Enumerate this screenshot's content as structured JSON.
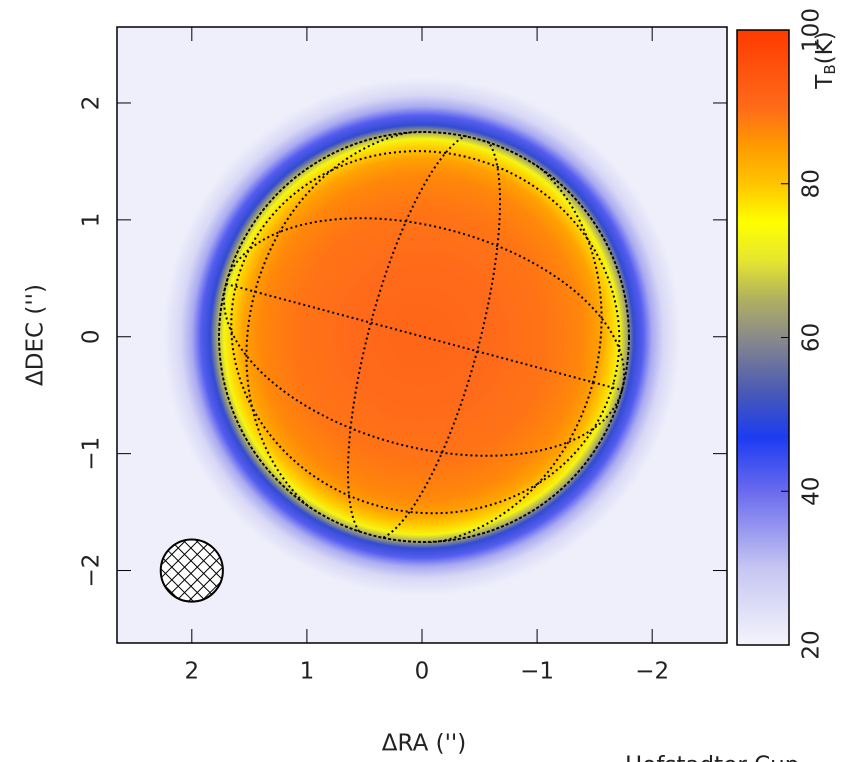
{
  "chart_data": {
    "type": "radial-map",
    "x_label": "ΔRA ('')",
    "y_label": "ΔDEC ('')",
    "colorbar_label": {
      "main": "T",
      "sub": "B",
      "unit": "(K)"
    },
    "xlim": [
      2.65,
      -2.65
    ],
    "ylim": [
      -2.62,
      2.65
    ],
    "xticks": [
      2,
      1,
      0,
      {
        "value": -1,
        "label": "−1"
      },
      {
        "value": -2,
        "label": "−2"
      }
    ],
    "yticks": [
      {
        "value": -2,
        "label": "−2"
      },
      {
        "value": -1,
        "label": "−1"
      },
      0,
      1,
      2
    ],
    "clim": [
      20,
      100
    ],
    "cticks": [
      20,
      40,
      60,
      80,
      100
    ],
    "colormap": {
      "values": [
        20,
        30,
        40,
        47,
        53,
        60,
        65,
        70,
        75,
        80,
        85,
        90,
        100
      ],
      "colors": [
        "#f4f4fc",
        "#c6c6f2",
        "#6a6aee",
        "#1c3cf2",
        "#4a5ab4",
        "#8a8a8a",
        "#b0b060",
        "#e6e630",
        "#ffff00",
        "#ffc400",
        "#ff9a00",
        "#ff6a1a",
        "#ff3a00"
      ]
    },
    "profile": {
      "r": [
        0,
        0.6,
        1.1,
        1.4,
        1.55,
        1.65,
        1.72,
        1.78,
        1.84,
        1.92,
        2.0,
        2.1,
        2.25
      ],
      "values": [
        91,
        90,
        89,
        87,
        84,
        79,
        73,
        64,
        50,
        42,
        33,
        26,
        21
      ]
    },
    "beam": {
      "x": 2,
      "y": -2,
      "radius": 0.27
    },
    "footer_text": "Hofstadter Cup"
  }
}
